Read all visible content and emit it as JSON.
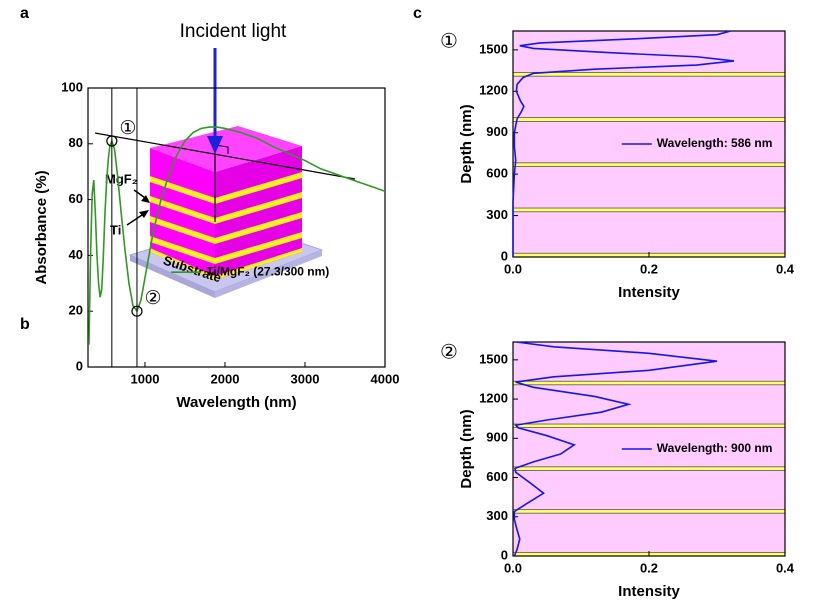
{
  "panel_labels": [
    "a",
    "b",
    "c"
  ],
  "diagram": {
    "incident": "Incident light",
    "layer_top": "MgF₂",
    "layer_bottom": "Ti",
    "substrate": "Substrate"
  },
  "chart_data": [
    {
      "type": "line",
      "xlabel": "Wavelength (nm)",
      "ylabel": "Absorbance (%)",
      "xlim": [
        288,
        4000
      ],
      "xticks": [
        1000,
        2000,
        3000,
        4000
      ],
      "ylim": [
        0,
        100
      ],
      "yticks": [
        0,
        20,
        40,
        60,
        80,
        100
      ],
      "x": [
        300,
        320,
        340,
        360,
        380,
        400,
        420,
        440,
        460,
        480,
        500,
        520,
        540,
        560,
        586,
        620,
        660,
        700,
        750,
        800,
        850,
        900,
        950,
        1000,
        1100,
        1200,
        1300,
        1400,
        1500,
        1600,
        1700,
        1800,
        1900,
        2000,
        2200,
        2400,
        2600,
        2800,
        3000,
        3200,
        3400,
        3600,
        3800,
        4000
      ],
      "series": [
        {
          "name": "Ti/MgF₂ (27.3/300 nm)",
          "color": "#2e9a1f",
          "values": [
            8,
            40,
            62,
            67,
            55,
            40,
            30,
            25,
            28,
            40,
            55,
            66,
            74,
            79,
            81,
            78,
            68,
            56,
            42,
            30,
            22,
            20,
            24,
            32,
            48,
            60,
            69,
            76,
            81,
            84,
            85.5,
            86,
            86,
            85.5,
            84,
            82,
            79,
            76.5,
            74,
            71,
            69,
            67,
            65,
            63
          ]
        }
      ],
      "markers": [
        {
          "x": 586,
          "y": 81,
          "label": "①"
        },
        {
          "x": 900,
          "y": 20,
          "label": "②"
        }
      ]
    },
    {
      "type": "profile",
      "label": "①",
      "xlabel": "Intensity",
      "ylabel": "Depth (nm)",
      "xlim": [
        0,
        0.4
      ],
      "xticks": [
        {
          "value": 0,
          "label": "0.0"
        },
        0.2,
        0.4
      ],
      "ylim": [
        0,
        1636.5
      ],
      "yticks": [
        0,
        300,
        600,
        900,
        1200,
        1500
      ],
      "background": "#ffccff",
      "layer_color": "#ffff66",
      "ti_layers": [
        [
          0,
          27.3
        ],
        [
          327.3,
          354.6
        ],
        [
          654.6,
          681.9
        ],
        [
          981.9,
          1009.2
        ],
        [
          1309.2,
          1336.5
        ]
      ],
      "series": [
        {
          "name": "Wavelength: 586 nm",
          "color": "#1515ee",
          "depth": [
            0,
            100,
            200,
            300,
            400,
            500,
            600,
            700,
            750,
            800,
            900,
            1000,
            1050,
            1090,
            1130,
            1200,
            1250,
            1300,
            1330,
            1360,
            1390,
            1420,
            1450,
            1480,
            1510,
            1530,
            1550,
            1580,
            1610,
            1636.5
          ],
          "values": [
            0,
            0,
            0,
            0,
            0,
            0.001,
            0.002,
            0.004,
            0.003,
            0.002,
            0.002,
            0.006,
            0.012,
            0.016,
            0.011,
            0.005,
            0.006,
            0.015,
            0.03,
            0.12,
            0.27,
            0.325,
            0.27,
            0.14,
            0.03,
            0.01,
            0.04,
            0.18,
            0.3,
            0.32
          ]
        }
      ]
    },
    {
      "type": "profile",
      "label": "②",
      "xlabel": "Intensity",
      "ylabel": "Depth (nm)",
      "xlim": [
        0,
        0.4
      ],
      "xticks": [
        {
          "value": 0,
          "label": "0.0"
        },
        0.2,
        0.4
      ],
      "ylim": [
        0,
        1636.5
      ],
      "yticks": [
        0,
        300,
        600,
        900,
        1200,
        1500
      ],
      "background": "#ffccff",
      "layer_color": "#ffff66",
      "ti_layers": [
        [
          0,
          27.3
        ],
        [
          327.3,
          354.6
        ],
        [
          654.6,
          681.9
        ],
        [
          981.9,
          1009.2
        ],
        [
          1309.2,
          1336.5
        ]
      ],
      "series": [
        {
          "name": "Wavelength: 900 nm",
          "color": "#1515ee",
          "depth": [
            0,
            50,
            130,
            200,
            280,
            340,
            400,
            480,
            560,
            640,
            670,
            720,
            780,
            850,
            920,
            980,
            1000,
            1040,
            1100,
            1160,
            1220,
            1290,
            1330,
            1370,
            1420,
            1490,
            1550,
            1600,
            1636.5
          ],
          "values": [
            0.002,
            0.006,
            0.01,
            0.006,
            0.002,
            0.002,
            0.02,
            0.045,
            0.025,
            0.004,
            0.003,
            0.03,
            0.07,
            0.09,
            0.05,
            0.008,
            0.004,
            0.05,
            0.13,
            0.17,
            0.12,
            0.03,
            0.004,
            0.06,
            0.2,
            0.3,
            0.2,
            0.06,
            0.005
          ]
        }
      ]
    }
  ]
}
